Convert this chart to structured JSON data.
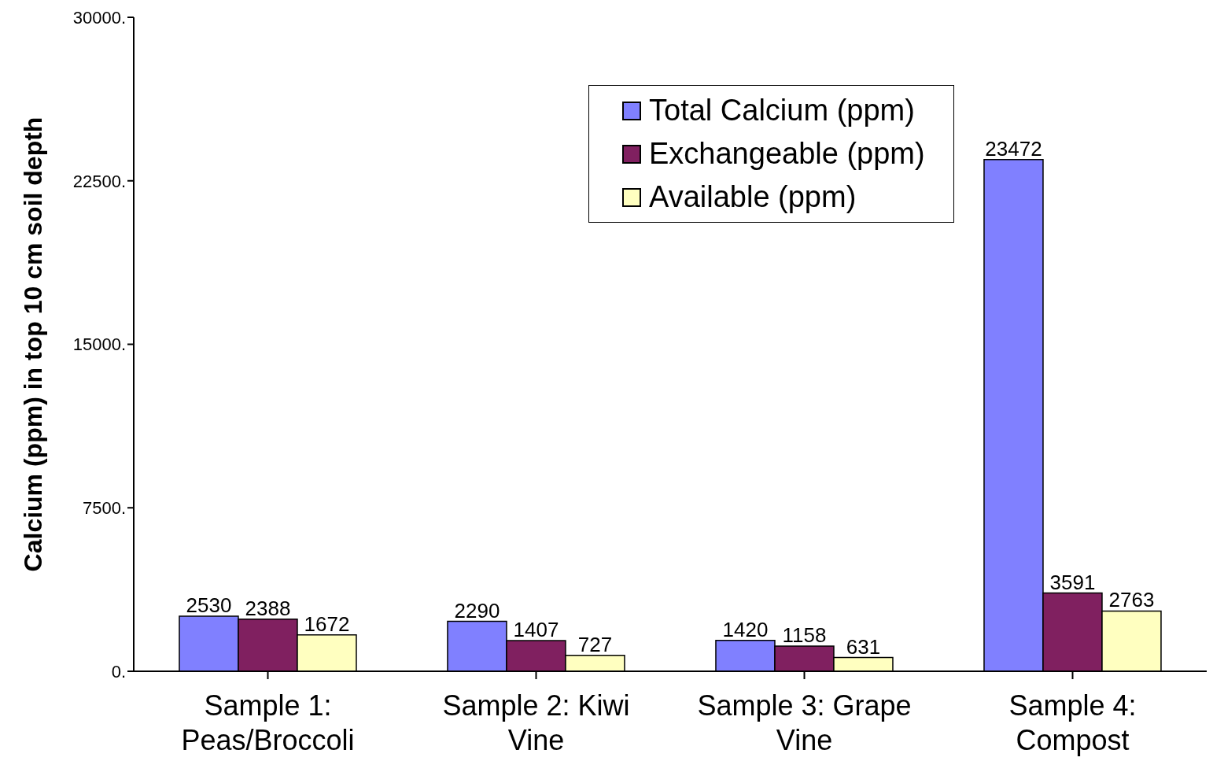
{
  "chart_data": {
    "type": "bar",
    "ylabel": "Calcium (ppm) in top 10 cm soil depth",
    "categories": [
      "Sample 1: Peas/Broccoli",
      "Sample 2: Kiwi Vine",
      "Sample 3: Grape Vine",
      "Sample 4: Compost"
    ],
    "series": [
      {
        "name": "Total Calcium (ppm)",
        "color": "#8080ff",
        "values": [
          2530,
          2290,
          1420,
          23472
        ]
      },
      {
        "name": "Exchangeable (ppm)",
        "color": "#802060",
        "values": [
          2388,
          1407,
          1158,
          3591
        ]
      },
      {
        "name": "Available (ppm)",
        "color": "#ffffc0",
        "values": [
          1672,
          727,
          631,
          2763
        ]
      }
    ],
    "ylim": [
      0,
      30000
    ],
    "yticks": [
      {
        "value": 0,
        "label": "0."
      },
      {
        "value": 7500,
        "label": "7500."
      },
      {
        "value": 15000,
        "label": "15000."
      },
      {
        "value": 22500,
        "label": "22500."
      },
      {
        "value": 30000,
        "label": "30000."
      }
    ],
    "grid": false,
    "legend": "top right",
    "data_labels": true
  }
}
